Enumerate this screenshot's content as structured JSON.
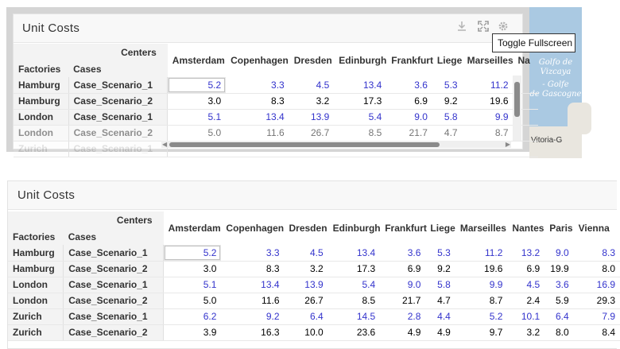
{
  "top_panel": {
    "title": "Unit Costs",
    "tooltip": "Toggle Fullscreen",
    "icons": [
      "download-icon",
      "fullscreen-icon",
      "gear-icon"
    ],
    "columns": [
      "Amsterdam",
      "Copenhagen",
      "Dresden",
      "Edinburgh",
      "Frankfurt",
      "Liege",
      "Marseilles",
      "Na"
    ],
    "rows": [
      {
        "factory": "Hamburg",
        "case": "Case_Scenario_1",
        "values": [
          "5.2",
          "3.3",
          "4.5",
          "13.4",
          "3.6",
          "5.3",
          "11.2"
        ]
      },
      {
        "factory": "Hamburg",
        "case": "Case_Scenario_2",
        "values": [
          "3.0",
          "8.3",
          "3.2",
          "17.3",
          "6.9",
          "9.2",
          "19.6"
        ]
      },
      {
        "factory": "London",
        "case": "Case_Scenario_1",
        "values": [
          "5.1",
          "13.4",
          "13.9",
          "5.4",
          "9.0",
          "5.8",
          "9.9"
        ]
      },
      {
        "factory": "London",
        "case": "Case_Scenario_2",
        "values": [
          "5.0",
          "11.6",
          "26.7",
          "8.5",
          "21.7",
          "4.7",
          "8.7"
        ]
      },
      {
        "factory": "Zurich",
        "case": "Case_Scenario_1",
        "values": [
          "",
          "",
          "",
          "",
          "",
          "",
          ""
        ]
      }
    ]
  },
  "map": {
    "labels": [
      "Golfo de",
      "Vizcaya",
      "- Golfe",
      "de Gascogne"
    ],
    "city": "Vitoria-G"
  },
  "bottom_panel": {
    "title": "Unit Costs",
    "columns": [
      "Amsterdam",
      "Copenhagen",
      "Dresden",
      "Edinburgh",
      "Frankfurt",
      "Liege",
      "Marseilles",
      "Nantes",
      "Paris",
      "Vienna"
    ],
    "rows": [
      {
        "factory": "Hamburg",
        "case": "Case_Scenario_1",
        "values": [
          "5.2",
          "3.3",
          "4.5",
          "13.4",
          "3.6",
          "5.3",
          "11.2",
          "13.2",
          "9.0",
          "8.3"
        ]
      },
      {
        "factory": "Hamburg",
        "case": "Case_Scenario_2",
        "values": [
          "3.0",
          "8.3",
          "3.2",
          "17.3",
          "6.9",
          "9.2",
          "19.6",
          "6.9",
          "19.9",
          "8.0"
        ]
      },
      {
        "factory": "London",
        "case": "Case_Scenario_1",
        "values": [
          "5.1",
          "13.4",
          "13.9",
          "5.4",
          "9.0",
          "5.8",
          "9.9",
          "4.5",
          "3.6",
          "16.9"
        ]
      },
      {
        "factory": "London",
        "case": "Case_Scenario_2",
        "values": [
          "5.0",
          "11.6",
          "26.7",
          "8.5",
          "21.7",
          "4.7",
          "8.7",
          "2.4",
          "5.9",
          "29.3"
        ]
      },
      {
        "factory": "Zurich",
        "case": "Case_Scenario_1",
        "values": [
          "6.2",
          "9.2",
          "6.4",
          "14.5",
          "2.8",
          "4.4",
          "5.2",
          "10.1",
          "6.4",
          "7.9"
        ]
      },
      {
        "factory": "Zurich",
        "case": "Case_Scenario_2",
        "values": [
          "3.9",
          "16.3",
          "10.0",
          "23.6",
          "4.9",
          "4.9",
          "9.7",
          "3.2",
          "8.0",
          "8.4"
        ]
      }
    ]
  },
  "headers": {
    "centers": "Centers",
    "factories": "Factories",
    "cases": "Cases"
  },
  "colors": {
    "editable_value": "#3333cc",
    "fixed_value": "#000000",
    "header_bg": "#f3f3f3"
  }
}
